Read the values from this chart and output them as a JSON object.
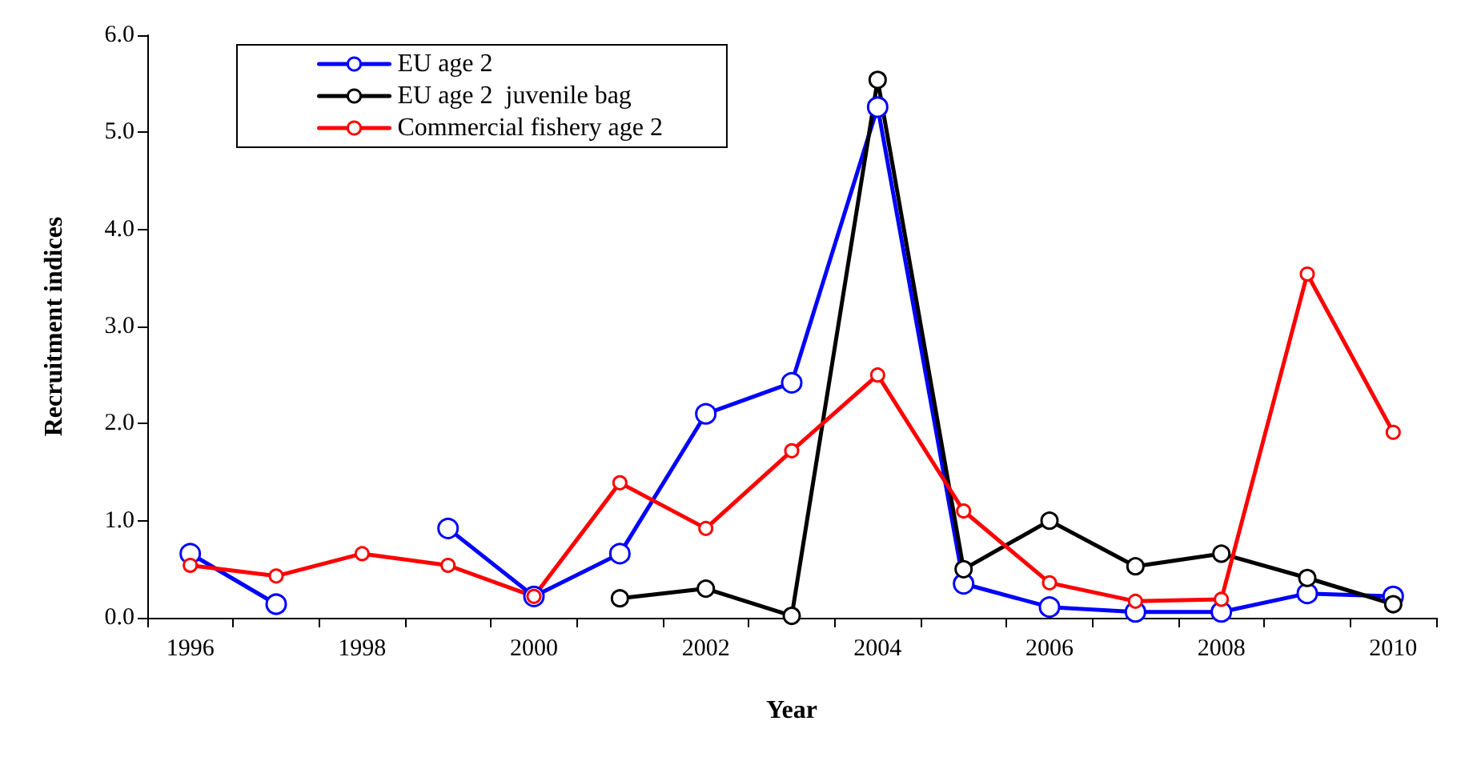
{
  "chart_data": {
    "type": "line",
    "xlabel": "Year",
    "ylabel": "Recruitment indices",
    "categories": [
      "1996",
      null,
      "1998",
      null,
      "2000",
      null,
      "2002",
      null,
      "2004",
      null,
      "2006",
      null,
      "2008",
      null,
      "2010"
    ],
    "series": [
      {
        "name": "EU age 2",
        "color": "#0000ff",
        "values": [
          0.66,
          0.14,
          null,
          0.92,
          0.22,
          0.66,
          2.1,
          2.42,
          5.26,
          0.35,
          0.11,
          0.06,
          0.06,
          0.25,
          0.22
        ]
      },
      {
        "name": "EU age 2  juvenile bag",
        "color": "#000000",
        "values": [
          null,
          null,
          null,
          null,
          null,
          0.2,
          0.3,
          0.02,
          5.54,
          0.5,
          1.0,
          0.53,
          0.66,
          0.41,
          0.14
        ]
      },
      {
        "name": "Commercial fishery age 2",
        "color": "#ff0000",
        "values": [
          0.54,
          0.43,
          0.66,
          0.54,
          0.22,
          1.39,
          0.92,
          1.72,
          2.5,
          1.1,
          0.36,
          0.17,
          0.19,
          3.54,
          1.91
        ]
      }
    ],
    "ylim": [
      0,
      6
    ],
    "yticks": [
      {
        "value": 0,
        "label": "0.0"
      },
      {
        "value": 1,
        "label": "1.0"
      },
      {
        "value": 2,
        "label": "2.0"
      },
      {
        "value": 3,
        "label": "3.0"
      },
      {
        "value": 4,
        "label": "4.0"
      },
      {
        "value": 5,
        "label": "5.0"
      },
      {
        "value": 6,
        "label": "6.0"
      }
    ],
    "grid": false,
    "legend": "top left",
    "marker": "circle",
    "line_style": "solid"
  }
}
